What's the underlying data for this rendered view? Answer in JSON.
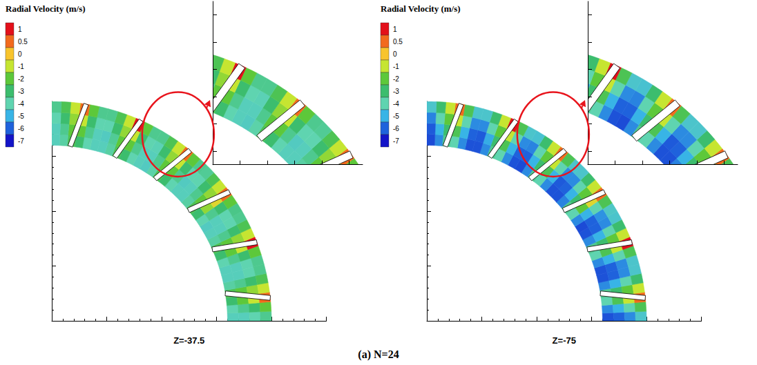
{
  "caption": "(a) N=24",
  "chart_data": [
    {
      "type": "contour",
      "xlabel": "Z=-37.5",
      "xlim": [
        0,
        1.25
      ],
      "ylim": [
        0,
        1
      ],
      "xticks": [
        0,
        0.25,
        0.5,
        0.75,
        1,
        1.25
      ],
      "yticks": [
        0,
        0.25,
        0.5,
        0.75,
        1
      ],
      "tick_labels": false,
      "colorbar": {
        "title": "Radial Velocity (m/s)",
        "range": [
          -7,
          1
        ],
        "ticks": [
          1,
          0.5,
          0,
          -1,
          -2,
          -3,
          -4,
          -5,
          -6,
          -7
        ],
        "colors": [
          "#e3101a",
          "#f26a1d",
          "#f8c42c",
          "#c6e531",
          "#5dc83a",
          "#3cbd6e",
          "#5fd4b0",
          "#38b4e6",
          "#1f62dc",
          "#1414c8"
        ]
      },
      "cells": {
        "angles_deg": [
          0,
          2.5,
          5,
          7.5,
          10,
          12.5,
          15,
          17.5,
          20,
          22.5,
          25,
          27.5,
          30,
          32.5,
          35,
          37.5,
          40,
          42.5,
          45,
          47.5,
          50,
          52.5,
          55,
          57.5,
          60,
          62.5,
          65,
          67.5,
          70,
          72.5,
          75,
          77.5,
          80,
          82.5,
          85,
          87.5,
          90
        ],
        "radii": [
          0.8,
          0.85,
          0.9,
          0.95,
          1
        ],
        "values": [
          [
            -4.2,
            -4,
            -3,
            -2.5,
            -3.8,
            -4.2,
            -4.2,
            -4,
            -3,
            -2.5,
            -3.8,
            -4.2,
            -4.3,
            -4,
            -3,
            -2.5,
            -3.8,
            -4.2,
            -4.2,
            -4,
            -3,
            -2.5,
            -3.9,
            -4.3,
            -4.2,
            -4,
            -3,
            -2.5,
            -3.8,
            -4.2,
            -4.2,
            -4,
            -3,
            -2.5,
            -3.8,
            -4.2
          ],
          [
            -4.2,
            -3.5,
            -2,
            -2,
            -3.5,
            -4.2,
            -4.2,
            -3.5,
            -2,
            -2,
            -3.5,
            -4.2,
            -4.2,
            -3.5,
            -1.5,
            -2,
            -3.5,
            -4.2,
            -4.3,
            -3.5,
            -2,
            -2,
            -3.5,
            -4.2,
            -4.2,
            -3.5,
            -2,
            -2,
            -3.6,
            -4.3,
            -4.2,
            -3.5,
            -2,
            -2,
            -3.5,
            -4.2
          ],
          [
            -4,
            -3,
            -1,
            -1.5,
            -3,
            -4,
            -4,
            -3,
            -1,
            -1.5,
            -3,
            -4,
            -4,
            -3,
            -0.5,
            -1.5,
            -3,
            -4,
            -4,
            -3,
            -1,
            -1.5,
            -3,
            -4.1,
            -4,
            -3,
            -1,
            -1.5,
            -3,
            -4,
            -4,
            -3,
            -1,
            -1.5,
            -3,
            -4
          ],
          [
            -3.5,
            -2,
            0.5,
            -1,
            -2.5,
            -3.5,
            -3.5,
            -2,
            1,
            -1,
            -2.5,
            -3.5,
            -3.4,
            -2,
            0.5,
            -1,
            -2.5,
            -3.6,
            -3.5,
            -2,
            0.5,
            -1,
            -2.5,
            -3.5,
            -3.5,
            -2,
            1,
            -1,
            -2.5,
            -3.5,
            -3.5,
            -2,
            0.5,
            -1,
            -2.5,
            -3.5
          ]
        ]
      },
      "blades_deg": [
        7.5,
        22.5,
        37.5,
        52.5,
        67.5,
        82.5
      ],
      "inset": {
        "xlim": [
          0.3,
          0.85
        ],
        "ylim": [
          0.55,
          1.15
        ],
        "xticks": [
          0.3,
          0.4,
          0.5,
          0.6,
          0.7,
          0.8
        ],
        "yticks": [
          0.6,
          0.7,
          0.8,
          0.9,
          1,
          1.1
        ]
      }
    },
    {
      "type": "contour",
      "xlabel": "Z=-75",
      "xlim": [
        0,
        1.25
      ],
      "ylim": [
        0,
        1
      ],
      "xticks": [
        0,
        0.25,
        0.5,
        0.75,
        1,
        1.25
      ],
      "yticks": [
        0,
        0.25,
        0.5,
        0.75,
        1
      ],
      "tick_labels": false,
      "colorbar": {
        "title": "Radial Velocity (m/s)",
        "range": [
          -7,
          1
        ],
        "ticks": [
          1,
          0.5,
          0,
          -1,
          -2,
          -3,
          -4,
          -5,
          -6,
          -7
        ],
        "colors": [
          "#e3101a",
          "#f26a1d",
          "#f8c42c",
          "#c6e531",
          "#5dc83a",
          "#3cbd6e",
          "#5fd4b0",
          "#38b4e6",
          "#1f62dc",
          "#1414c8"
        ]
      },
      "cells": {
        "angles_deg": [
          0,
          2.5,
          5,
          7.5,
          10,
          12.5,
          15,
          17.5,
          20,
          22.5,
          25,
          27.5,
          30,
          32.5,
          35,
          37.5,
          40,
          42.5,
          45,
          47.5,
          50,
          52.5,
          55,
          57.5,
          60,
          62.5,
          65,
          67.5,
          70,
          72.5,
          75,
          77.5,
          80,
          82.5,
          85,
          87.5,
          90
        ],
        "radii": [
          0.8,
          0.85,
          0.9,
          0.95,
          1
        ],
        "values": [
          [
            -6.2,
            -5.5,
            -4,
            -3.5,
            -5.5,
            -6.2,
            -6.2,
            -5.5,
            -4,
            -3.5,
            -5.5,
            -6.2,
            -6.3,
            -5.5,
            -4,
            -3.5,
            -5.6,
            -6.2,
            -6.2,
            -5.5,
            -4,
            -3.5,
            -5.5,
            -6.3,
            -6.2,
            -5.5,
            -4,
            -3.5,
            -5.5,
            -6.2,
            -6.2,
            -5.5,
            -4,
            -3.5,
            -5.5,
            -6.3
          ],
          [
            -6,
            -5,
            -2.5,
            -3,
            -5,
            -6,
            -6,
            -5,
            -2.5,
            -3,
            -5,
            -6,
            -6,
            -5,
            -2,
            -3,
            -5,
            -6,
            -6.1,
            -5,
            -2.5,
            -3,
            -5,
            -6,
            -6,
            -5,
            -2.5,
            -3,
            -5.1,
            -6.1,
            -6,
            -5,
            -2.5,
            -3,
            -5,
            -6.1
          ],
          [
            -5.5,
            -4,
            -1,
            -2,
            -4,
            -5.5,
            -5.5,
            -4,
            -1,
            -2,
            -4,
            -5.5,
            -5.4,
            -4,
            -0.5,
            -2,
            -4,
            -5.5,
            -5.5,
            -4,
            -1,
            -2,
            -4,
            -5.6,
            -5.5,
            -4,
            -1,
            -2,
            -4,
            -5.5,
            -5.5,
            -4,
            -1,
            -2,
            -4,
            -5.6
          ],
          [
            -4.5,
            -2.5,
            0.5,
            -1,
            -3,
            -4.5,
            -4.5,
            -2.5,
            1,
            -1,
            -3,
            -4.5,
            -4.4,
            -2.5,
            0.5,
            -1,
            -3,
            -4.5,
            -4.5,
            -2.5,
            0.5,
            -1,
            -3,
            -4.6,
            -4.5,
            -2.5,
            1,
            -1,
            -3,
            -4.5,
            -4.5,
            -2.5,
            0.5,
            -1,
            -3,
            -4.5
          ]
        ]
      },
      "blades_deg": [
        7.5,
        22.5,
        37.5,
        52.5,
        67.5,
        82.5
      ],
      "inset": {
        "xlim": [
          0.3,
          0.85
        ],
        "ylim": [
          0.55,
          1.15
        ],
        "xticks": [
          0.3,
          0.4,
          0.5,
          0.6,
          0.7,
          0.8
        ],
        "yticks": [
          0.6,
          0.7,
          0.8,
          0.9,
          1,
          1.1
        ]
      }
    }
  ]
}
